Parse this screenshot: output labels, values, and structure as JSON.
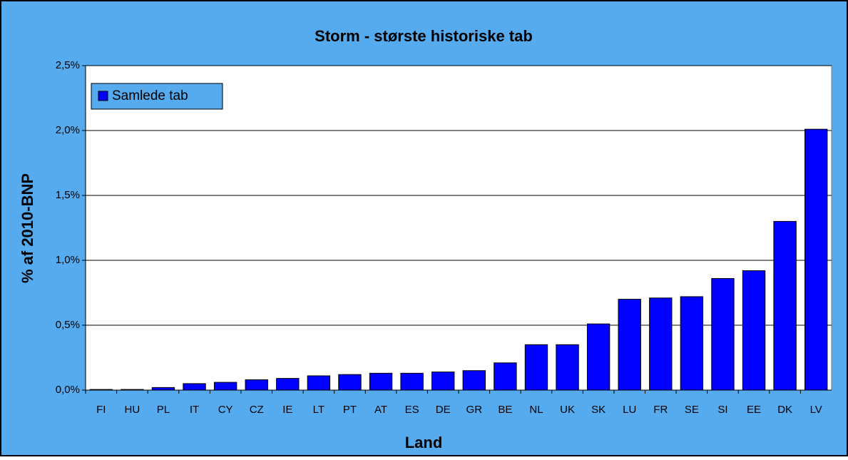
{
  "chart_data": {
    "type": "bar",
    "title": "Storm - største historiske tab",
    "x_label": "Land",
    "y_label": "% af 2010-BNP",
    "categories": [
      "FI",
      "HU",
      "PL",
      "IT",
      "CY",
      "CZ",
      "IE",
      "LT",
      "PT",
      "AT",
      "ES",
      "DE",
      "GR",
      "BE",
      "NL",
      "UK",
      "SK",
      "LU",
      "FR",
      "SE",
      "SI",
      "EE",
      "DK",
      "LV"
    ],
    "series": [
      {
        "name": "Samlede tab",
        "color": "#0000ff",
        "values": [
          0.005,
          0.005,
          0.02,
          0.05,
          0.06,
          0.08,
          0.09,
          0.11,
          0.12,
          0.13,
          0.13,
          0.14,
          0.15,
          0.21,
          0.35,
          0.35,
          0.51,
          0.7,
          0.71,
          0.72,
          0.86,
          0.92,
          1.3,
          2.01
        ]
      }
    ],
    "ylim": [
      0,
      2.5
    ],
    "yticks": [
      {
        "value": 0,
        "label": "0,0%"
      },
      {
        "value": 0.5,
        "label": "0,5%"
      },
      {
        "value": 1.0,
        "label": "1,0%"
      },
      {
        "value": 1.5,
        "label": "1,5%"
      },
      {
        "value": 2.0,
        "label": "2,0%"
      },
      {
        "value": 2.5,
        "label": "2,5%"
      }
    ],
    "grid": true,
    "legend": "upper left"
  }
}
